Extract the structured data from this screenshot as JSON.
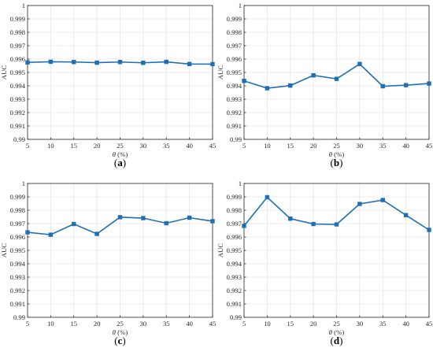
{
  "figure": {
    "accent_color": "#1f6fb2",
    "grid_color": "#e6e6e6",
    "axis_color": "#262626",
    "marker": "square"
  },
  "chart_data": [
    {
      "panel": "a",
      "caption": {
        "open": "(",
        "letter": "a",
        "close": ")"
      },
      "type": "line",
      "xlabel": {
        "symbol": "θ",
        "unit": " (%)"
      },
      "ylabel": "AUC",
      "x": [
        5,
        10,
        15,
        20,
        25,
        30,
        35,
        40,
        45
      ],
      "xticks": [
        "5",
        "10",
        "15",
        "20",
        "25",
        "30",
        "35",
        "40",
        "45"
      ],
      "xlim": [
        5,
        45
      ],
      "yticks": [
        "0.99",
        "0.991",
        "0.992",
        "0.993",
        "0.994",
        "0.995",
        "0.996",
        "0.997",
        "0.998",
        "0.999",
        "1"
      ],
      "ylim": [
        0.99,
        1
      ],
      "grid": true,
      "series": [
        {
          "values": [
            0.99575,
            0.9958,
            0.99578,
            0.99573,
            0.99578,
            0.99572,
            0.99579,
            0.99563,
            0.99562
          ]
        }
      ]
    },
    {
      "panel": "b",
      "caption": {
        "open": "(",
        "letter": "b",
        "close": ")"
      },
      "type": "line",
      "xlabel": {
        "symbol": "θ",
        "unit": " (%)"
      },
      "ylabel": "AUC",
      "x": [
        5,
        10,
        15,
        20,
        25,
        30,
        35,
        40,
        45
      ],
      "xticks": [
        "5",
        "10",
        "15",
        "20",
        "25",
        "30",
        "35",
        "40",
        "45"
      ],
      "xlim": [
        5,
        45
      ],
      "yticks": [
        "0.99",
        "0.991",
        "0.992",
        "0.993",
        "0.994",
        "0.995",
        "0.996",
        "0.997",
        "0.998",
        "0.999",
        "1"
      ],
      "ylim": [
        0.99,
        1
      ],
      "grid": true,
      "series": [
        {
          "values": [
            0.99437,
            0.99382,
            0.99402,
            0.99478,
            0.99452,
            0.99563,
            0.99397,
            0.99405,
            0.99417
          ]
        }
      ]
    },
    {
      "panel": "c",
      "caption": {
        "open": "(",
        "letter": "c",
        "close": ")"
      },
      "type": "line",
      "xlabel": {
        "symbol": "θ",
        "unit": " (%)"
      },
      "ylabel": "AUC",
      "x": [
        5,
        10,
        15,
        20,
        25,
        30,
        35,
        40,
        45
      ],
      "xticks": [
        "5",
        "10",
        "15",
        "20",
        "25",
        "30",
        "35",
        "40",
        "45"
      ],
      "xlim": [
        5,
        45
      ],
      "yticks": [
        "0.99",
        "0.991",
        "0.992",
        "0.993",
        "0.994",
        "0.995",
        "0.996",
        "0.997",
        "0.998",
        "0.999",
        "1"
      ],
      "ylim": [
        0.99,
        1
      ],
      "grid": true,
      "series": [
        {
          "values": [
            0.99635,
            0.99617,
            0.99697,
            0.99623,
            0.99748,
            0.99741,
            0.99703,
            0.99744,
            0.99718
          ]
        }
      ]
    },
    {
      "panel": "d",
      "caption": {
        "open": "(",
        "letter": "d",
        "close": ")"
      },
      "type": "line",
      "xlabel": {
        "symbol": "θ",
        "unit": " (%)"
      },
      "ylabel": "AUC",
      "x": [
        5,
        10,
        15,
        20,
        25,
        30,
        35,
        40,
        45
      ],
      "xticks": [
        "5",
        "10",
        "15",
        "20",
        "25",
        "30",
        "35",
        "40",
        "45"
      ],
      "xlim": [
        5,
        45
      ],
      "yticks": [
        "0.99",
        "0.991",
        "0.992",
        "0.993",
        "0.994",
        "0.995",
        "0.996",
        "0.997",
        "0.998",
        "0.999",
        "1"
      ],
      "ylim": [
        0.99,
        1
      ],
      "grid": true,
      "series": [
        {
          "values": [
            0.99683,
            0.99897,
            0.99737,
            0.99697,
            0.99694,
            0.99847,
            0.99876,
            0.99763,
            0.99653
          ]
        }
      ]
    }
  ]
}
